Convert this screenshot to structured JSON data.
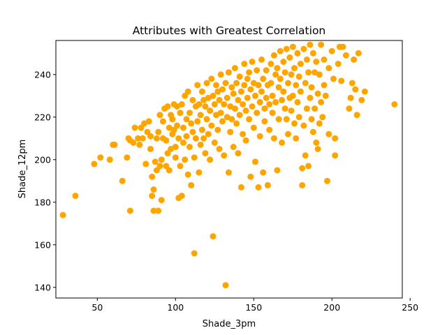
{
  "chart_data": {
    "type": "scatter",
    "title": "Attributes with Greatest Correlation",
    "xlabel": "Shade_3pm",
    "ylabel": "Shade_12pm",
    "xlim": [
      23.5,
      245
    ],
    "ylim": [
      135,
      256
    ],
    "xticks": [
      50,
      100,
      150,
      200,
      250
    ],
    "yticks": [
      140,
      160,
      180,
      200,
      220,
      240
    ],
    "grid": false,
    "legend": "none",
    "marker_color": "#ffa500",
    "series": [
      {
        "points": [
          [
            28,
            174
          ],
          [
            36,
            183
          ],
          [
            48,
            198
          ],
          [
            52,
            201
          ],
          [
            58,
            200
          ],
          [
            60,
            207
          ],
          [
            61,
            207
          ],
          [
            66,
            190
          ],
          [
            69,
            201
          ],
          [
            70,
            210
          ],
          [
            71,
            176
          ],
          [
            71,
            209
          ],
          [
            73,
            208
          ],
          [
            74,
            215
          ],
          [
            76,
            210
          ],
          [
            77,
            207
          ],
          [
            78,
            215
          ],
          [
            79,
            210
          ],
          [
            80,
            217
          ],
          [
            81,
            198
          ],
          [
            82,
            213
          ],
          [
            83,
            218
          ],
          [
            84,
            205
          ],
          [
            84,
            211
          ],
          [
            85,
            183
          ],
          [
            85,
            192
          ],
          [
            86,
            186
          ],
          [
            86,
            176
          ],
          [
            87,
            199
          ],
          [
            88,
            210
          ],
          [
            88,
            195
          ],
          [
            89,
            176
          ],
          [
            89,
            213
          ],
          [
            90,
            197
          ],
          [
            90,
            221
          ],
          [
            91,
            181
          ],
          [
            91,
            200
          ],
          [
            92,
            218
          ],
          [
            92,
            210
          ],
          [
            93,
            224
          ],
          [
            94,
            209
          ],
          [
            94,
            197
          ],
          [
            95,
            225
          ],
          [
            95,
            203
          ],
          [
            96,
            195
          ],
          [
            96,
            215
          ],
          [
            97,
            221
          ],
          [
            97,
            205
          ],
          [
            98,
            212
          ],
          [
            98,
            219
          ],
          [
            99,
            226
          ],
          [
            99,
            214
          ],
          [
            100,
            206
          ],
          [
            100,
            201
          ],
          [
            101,
            216
          ],
          [
            101,
            225
          ],
          [
            102,
            210
          ],
          [
            102,
            182
          ],
          [
            103,
            222
          ],
          [
            103,
            197
          ],
          [
            104,
            183
          ],
          [
            104,
            226
          ],
          [
            105,
            215
          ],
          [
            105,
            208
          ],
          [
            106,
            230
          ],
          [
            106,
            200
          ],
          [
            107,
            219
          ],
          [
            107,
            211
          ],
          [
            108,
            193
          ],
          [
            108,
            232
          ],
          [
            109,
            222
          ],
          [
            109,
            206
          ],
          [
            110,
            217
          ],
          [
            110,
            188
          ],
          [
            111,
            228
          ],
          [
            111,
            213
          ],
          [
            112,
            201
          ],
          [
            112,
            156
          ],
          [
            113,
            225
          ],
          [
            113,
            210
          ],
          [
            114,
            235
          ],
          [
            114,
            218
          ],
          [
            115,
            194
          ],
          [
            115,
            226
          ],
          [
            116,
            221
          ],
          [
            116,
            207
          ],
          [
            117,
            232
          ],
          [
            117,
            214
          ],
          [
            118,
            210
          ],
          [
            118,
            228
          ],
          [
            119,
            225
          ],
          [
            119,
            203
          ],
          [
            120,
            236
          ],
          [
            120,
            219
          ],
          [
            121,
            212
          ],
          [
            121,
            229
          ],
          [
            122,
            223
          ],
          [
            122,
            200
          ],
          [
            123,
            238
          ],
          [
            123,
            216
          ],
          [
            124,
            164
          ],
          [
            124,
            230
          ],
          [
            125,
            226
          ],
          [
            125,
            208
          ],
          [
            126,
            235
          ],
          [
            126,
            221
          ],
          [
            127,
            214
          ],
          [
            127,
            232
          ],
          [
            128,
            228
          ],
          [
            128,
            205
          ],
          [
            129,
            240
          ],
          [
            129,
            222
          ],
          [
            130,
            218
          ],
          [
            130,
            233
          ],
          [
            131,
            226
          ],
          [
            131,
            202
          ],
          [
            132,
            141
          ],
          [
            132,
            236
          ],
          [
            133,
            220
          ],
          [
            133,
            229
          ],
          [
            134,
            194
          ],
          [
            134,
            241
          ],
          [
            135,
            225
          ],
          [
            135,
            213
          ],
          [
            136,
            234
          ],
          [
            136,
            219
          ],
          [
            137,
            231
          ],
          [
            137,
            206
          ],
          [
            138,
            243
          ],
          [
            138,
            224
          ],
          [
            139,
            217
          ],
          [
            139,
            236
          ],
          [
            140,
            228
          ],
          [
            140,
            203
          ],
          [
            141,
            239
          ],
          [
            141,
            221
          ],
          [
            142,
            187
          ],
          [
            142,
            232
          ],
          [
            143,
            226
          ],
          [
            143,
            212
          ],
          [
            144,
            245
          ],
          [
            144,
            235
          ],
          [
            145,
            223
          ],
          [
            145,
            209
          ],
          [
            146,
            238
          ],
          [
            146,
            229
          ],
          [
            147,
            219
          ],
          [
            147,
            241
          ],
          [
            148,
            233
          ],
          [
            148,
            192
          ],
          [
            149,
            225
          ],
          [
            149,
            246
          ],
          [
            150,
            215
          ],
          [
            150,
            236
          ],
          [
            151,
            230
          ],
          [
            151,
            199
          ],
          [
            152,
            242
          ],
          [
            152,
            222
          ],
          [
            153,
            187
          ],
          [
            153,
            235
          ],
          [
            154,
            227
          ],
          [
            154,
            211
          ],
          [
            155,
            247
          ],
          [
            155,
            232
          ],
          [
            156,
            194
          ],
          [
            156,
            238
          ],
          [
            157,
            224
          ],
          [
            157,
            218
          ],
          [
            158,
            242
          ],
          [
            158,
            229
          ],
          [
            159,
            188
          ],
          [
            159,
            235
          ],
          [
            160,
            226
          ],
          [
            160,
            214
          ],
          [
            161,
            245
          ],
          [
            161,
            236
          ],
          [
            162,
            222
          ],
          [
            162,
            230
          ],
          [
            163,
            249
          ],
          [
            163,
            210
          ],
          [
            164,
            240
          ],
          [
            164,
            227
          ],
          [
            165,
            195
          ],
          [
            165,
            243
          ],
          [
            166,
            234
          ],
          [
            166,
            219
          ],
          [
            167,
            251
          ],
          [
            167,
            238
          ],
          [
            168,
            228
          ],
          [
            168,
            208
          ],
          [
            169,
            246
          ],
          [
            169,
            232
          ],
          [
            170,
            224
          ],
          [
            170,
            241
          ],
          [
            171,
            252
          ],
          [
            171,
            219
          ],
          [
            172,
            236
          ],
          [
            172,
            212
          ],
          [
            173,
            248
          ],
          [
            173,
            229
          ],
          [
            174,
            223
          ],
          [
            174,
            240
          ],
          [
            175,
            253
          ],
          [
            175,
            230
          ],
          [
            176,
            217
          ],
          [
            176,
            243
          ],
          [
            177,
            235
          ],
          [
            177,
            210
          ],
          [
            178,
            250
          ],
          [
            178,
            227
          ],
          [
            179,
            239
          ],
          [
            179,
            220
          ],
          [
            180,
            245
          ],
          [
            180,
            232
          ],
          [
            181,
            188
          ],
          [
            181,
            196
          ],
          [
            182,
            252
          ],
          [
            182,
            216
          ],
          [
            183,
            236
          ],
          [
            183,
            202
          ],
          [
            184,
            247
          ],
          [
            184,
            224
          ],
          [
            185,
            241
          ],
          [
            185,
            197
          ],
          [
            186,
            254
          ],
          [
            186,
            229
          ],
          [
            187,
            219
          ],
          [
            187,
            234
          ],
          [
            188,
            213
          ],
          [
            188,
            250
          ],
          [
            189,
            241
          ],
          [
            189,
            224
          ],
          [
            190,
            208
          ],
          [
            190,
            246
          ],
          [
            191,
            231
          ],
          [
            191,
            205
          ],
          [
            192,
            217
          ],
          [
            192,
            240
          ],
          [
            193,
            254
          ],
          [
            193,
            227
          ],
          [
            194,
            220
          ],
          [
            195,
            235
          ],
          [
            195,
            247
          ],
          [
            196,
            230
          ],
          [
            197,
            190
          ],
          [
            198,
            243
          ],
          [
            198,
            212
          ],
          [
            200,
            251
          ],
          [
            201,
            238
          ],
          [
            202,
            202
          ],
          [
            202,
            210
          ],
          [
            204,
            245
          ],
          [
            205,
            253
          ],
          [
            206,
            237
          ],
          [
            207,
            253
          ],
          [
            209,
            249
          ],
          [
            211,
            224
          ],
          [
            212,
            229
          ],
          [
            213,
            236
          ],
          [
            214,
            247
          ],
          [
            215,
            233
          ],
          [
            216,
            221
          ],
          [
            217,
            250
          ],
          [
            219,
            228
          ],
          [
            221,
            232
          ],
          [
            240,
            226
          ]
        ]
      }
    ]
  }
}
